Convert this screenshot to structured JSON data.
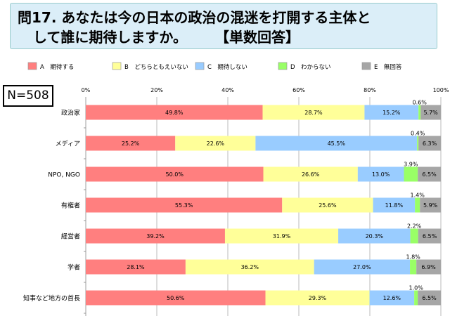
{
  "title": {
    "line1": "問17. あなたは今の日本の政治の混迷を打開する主体と",
    "line2": "して誰に期待しますか。　　　【単数回答】"
  },
  "sample_size": "N=508",
  "chart_data": {
    "type": "bar",
    "orientation": "horizontal",
    "stacked": "100%",
    "categories": [
      "政治家",
      "メディア",
      "NPO, NGO",
      "有権者",
      "経営者",
      "学者",
      "知事など地方の首長"
    ],
    "series": [
      {
        "name": "A　期待する",
        "color": "#ff7f7f",
        "values": [
          49.8,
          25.2,
          50.0,
          55.3,
          39.2,
          28.1,
          50.6
        ]
      },
      {
        "name": "B　どちらともえいない",
        "color": "#ffff99",
        "values": [
          28.7,
          22.6,
          26.6,
          25.6,
          31.9,
          36.2,
          29.3
        ]
      },
      {
        "name": "C　期待しない",
        "color": "#99ccff",
        "values": [
          15.2,
          45.5,
          13.0,
          11.8,
          20.3,
          27.0,
          12.6
        ]
      },
      {
        "name": "D　わからない",
        "color": "#99ff66",
        "values": [
          0.6,
          0.4,
          3.9,
          1.4,
          2.2,
          1.8,
          1.0
        ]
      },
      {
        "name": "E　無回答",
        "color": "#a6a6a6",
        "values": [
          5.7,
          6.3,
          6.5,
          5.9,
          6.5,
          6.9,
          6.5
        ]
      }
    ],
    "xticks": [
      "0%",
      "20%",
      "40%",
      "60%",
      "80%",
      "100%"
    ],
    "xlim": [
      0,
      100
    ],
    "grid": true,
    "legend": "top"
  }
}
